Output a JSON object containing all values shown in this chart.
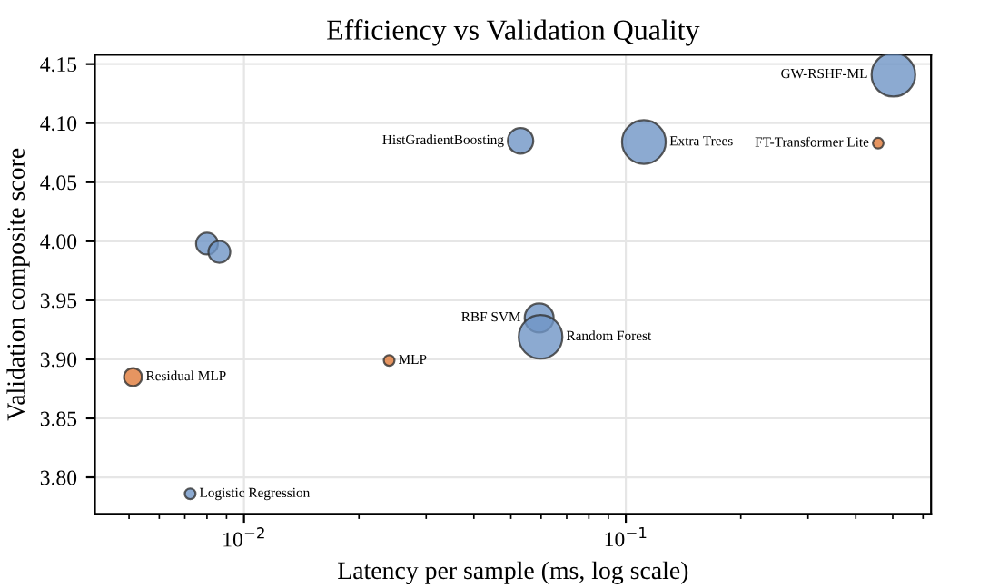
{
  "chart_data": {
    "type": "bubble",
    "title": "Efficiency vs Validation Quality",
    "xlabel": "Latency per sample (ms, log scale)",
    "ylabel": "Validation composite score",
    "log": "x",
    "grid": true,
    "xlim": [
      0.00407,
      0.63
    ],
    "xticks": [
      {
        "value": 0.01,
        "label": "10$^{−2}$"
      },
      {
        "value": 0.1,
        "label": "10$^{−1}$"
      }
    ],
    "ylim": [
      3.769,
      4.158
    ],
    "yticks": [
      {
        "value": 3.8,
        "label": "3.80"
      },
      3.85,
      {
        "value": 3.9,
        "label": "3.90"
      },
      3.95,
      {
        "value": 4.0,
        "label": "4.00"
      },
      4.05,
      {
        "value": 4.1,
        "label": "4.10"
      },
      4.15
    ],
    "series": [
      {
        "color": "#6f95c6",
        "x": [
          0.00723,
          0.008,
          0.00862,
          0.053,
          0.1115,
          0.502,
          0.0593,
          0.0598
        ],
        "values": [
          3.786,
          3.998,
          3.991,
          4.085,
          4.084,
          4.141,
          3.935,
          3.919
        ],
        "sizes": [
          0.06,
          0.25,
          0.25,
          0.34,
          1,
          1,
          0.44,
          1
        ]
      },
      {
        "color": "#e07b39",
        "x": [
          0.00512,
          0.024,
          0.458
        ],
        "values": [
          3.885,
          3.899,
          4.083
        ],
        "sizes": [
          0.17,
          0.06,
          0.06
        ]
      }
    ],
    "annotations": [
      {
        "text": "Logistic Regression",
        "x": 0.00723,
        "y": 3.786
      },
      {
        "text": "HistGradientBoosting",
        "x": 0.053,
        "y": 4.085
      },
      {
        "text": "Extra Trees",
        "x": 0.1115,
        "y": 4.084
      },
      {
        "text": "GW-RSHF-ML",
        "x": 0.502,
        "y": 4.141
      },
      {
        "text": "RBF SVM",
        "x": 0.0593,
        "y": 3.935
      },
      {
        "text": "Random Forest",
        "x": 0.0598,
        "y": 3.919
      },
      {
        "text": "Residual MLP",
        "x": 0.00512,
        "y": 3.885
      },
      {
        "text": "MLP",
        "x": 0.024,
        "y": 3.899
      },
      {
        "text": "FT-Transformer Lite",
        "x": 0.458,
        "y": 4.083
      }
    ]
  }
}
